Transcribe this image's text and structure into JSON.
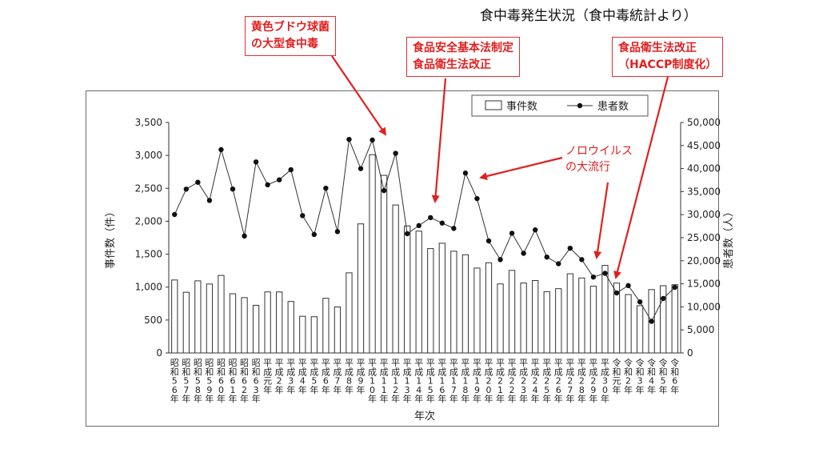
{
  "title": "食中毒発生状況（食中毒統計より）",
  "callouts": {
    "staph": [
      "黄色ブドウ球菌",
      "の大型食中毒"
    ],
    "law": [
      "食品安全基本法制定",
      "食品衛生法改正"
    ],
    "haccp": [
      "食品衛生法改正",
      "（HACCP制度化）"
    ],
    "noro": [
      "ノロウイルス",
      "の大流行"
    ]
  },
  "colors": {
    "callout": "#e02020",
    "line": "#333333",
    "bars": "#ffffff",
    "bar_stroke": "#333333"
  },
  "chart_data": {
    "type": "bar",
    "xlabel": "年次",
    "ylabel": "事件数（件）",
    "y2label": "患者数（人）",
    "ylim": [
      0,
      3500
    ],
    "y2lim": [
      0,
      50000
    ],
    "yticks": [
      "0",
      "500",
      "1,000",
      "1,500",
      "2,000",
      "2,500",
      "3,000",
      "3,500"
    ],
    "y2ticks": [
      "0",
      "5,000",
      "10,000",
      "15,000",
      "20,000",
      "25,000",
      "30,000",
      "35,000",
      "40,000",
      "45,000",
      "50,000"
    ],
    "grid": false,
    "legend_position": "top-right",
    "categories": [
      "昭和56年",
      "昭和57年",
      "昭和58年",
      "昭和59年",
      "昭和60年",
      "昭和61年",
      "昭和62年",
      "昭和63年",
      "平成元年",
      "平成2年",
      "平成3年",
      "平成4年",
      "平成5年",
      "平成6年",
      "平成7年",
      "平成8年",
      "平成9年",
      "平成10年",
      "平成11年",
      "平成12年",
      "平成13年",
      "平成14年",
      "平成15年",
      "平成16年",
      "平成17年",
      "平成18年",
      "平成19年",
      "平成20年",
      "平成21年",
      "平成22年",
      "平成23年",
      "平成24年",
      "平成25年",
      "平成26年",
      "平成27年",
      "平成28年",
      "平成29年",
      "平成30年",
      "令和元年",
      "令和2年",
      "令和3年",
      "令和4年",
      "令和5年",
      "令和6年"
    ],
    "series": [
      {
        "name": "事件数",
        "type": "bar",
        "values": [
          1108,
          922,
          1095,
          1047,
          1177,
          899,
          840,
          724,
          927,
          926,
          782,
          557,
          550,
          830,
          699,
          1217,
          1960,
          3010,
          2697,
          2247,
          1928,
          1850,
          1585,
          1666,
          1545,
          1491,
          1289,
          1369,
          1048,
          1254,
          1062,
          1100,
          931,
          976,
          1202,
          1139,
          1014,
          1330,
          1061,
          887,
          717,
          962,
          1021,
          1037
        ]
      },
      {
        "name": "患者数",
        "type": "line",
        "values": [
          30027,
          35536,
          37023,
          33084,
          44102,
          35556,
          25368,
          41439,
          36479,
          37561,
          39745,
          29790,
          25702,
          35735,
          26325,
          46327,
          39989,
          46179,
          35214,
          43307,
          25862,
          27629,
          29355,
          28175,
          27019,
          39026,
          33477,
          24303,
          20249,
          25972,
          21616,
          26699,
          20802,
          19355,
          22718,
          20252,
          16464,
          17282,
          13018,
          14613,
          11080,
          6856,
          11803,
          14229
        ]
      }
    ]
  }
}
